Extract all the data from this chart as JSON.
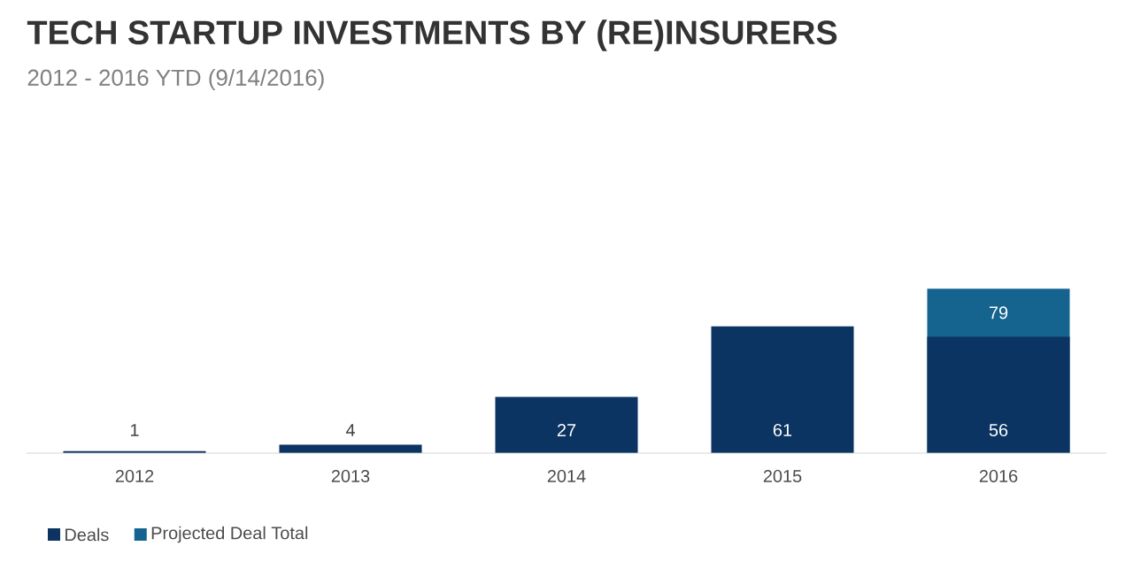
{
  "chart_data": {
    "type": "bar",
    "title": "TECH STARTUP INVESTMENTS BY (RE)INSURERS",
    "subtitle": "2012 - 2016 YTD (9/14/2016)",
    "categories": [
      "2012",
      "2013",
      "2014",
      "2015",
      "2016"
    ],
    "series": [
      {
        "name": "Deals",
        "color": "#0b3462",
        "values": [
          1,
          4,
          27,
          61,
          56
        ],
        "value_labels": [
          "1",
          "4",
          "27",
          "61",
          "56"
        ]
      },
      {
        "name": "Projected Deal Total",
        "color": "#14648f",
        "values": [
          null,
          null,
          null,
          null,
          79
        ],
        "value_labels": [
          null,
          null,
          null,
          null,
          "79"
        ]
      }
    ],
    "legend": "bottom left"
  }
}
